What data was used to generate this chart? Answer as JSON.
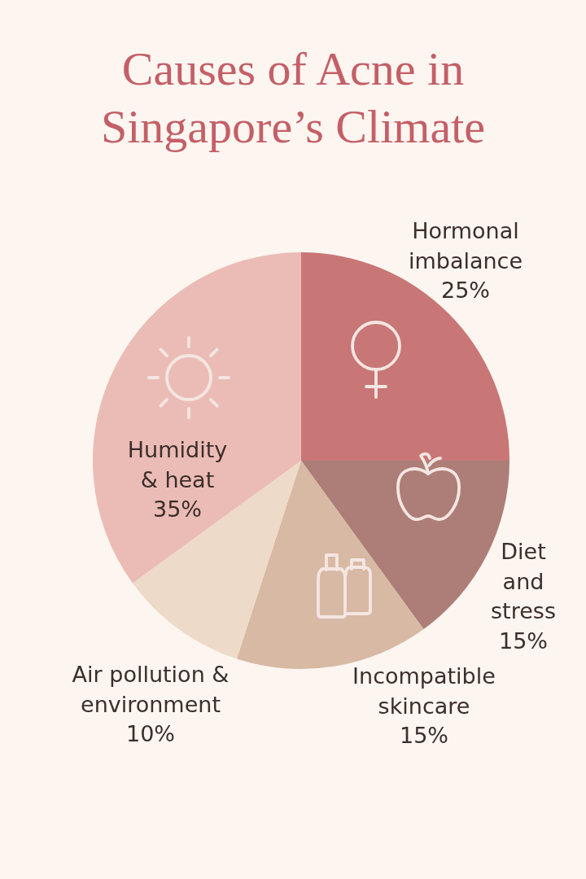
{
  "chart_data": {
    "type": "pie",
    "title": "Causes of Acne in Singapore’s Climate",
    "categories": [
      "Hormonal imbalance",
      "Diet and stress",
      "Incompatible skincare",
      "Air pollution & environment",
      "Humidity & heat"
    ],
    "values": [
      25,
      15,
      15,
      10,
      35
    ],
    "colors": [
      "#c87676",
      "#ad7e77",
      "#d7b9a4",
      "#eddac8",
      "#ebbcb5"
    ],
    "value_labels": [
      "25%",
      "15%",
      "15%",
      "10%",
      "35%"
    ]
  }
}
